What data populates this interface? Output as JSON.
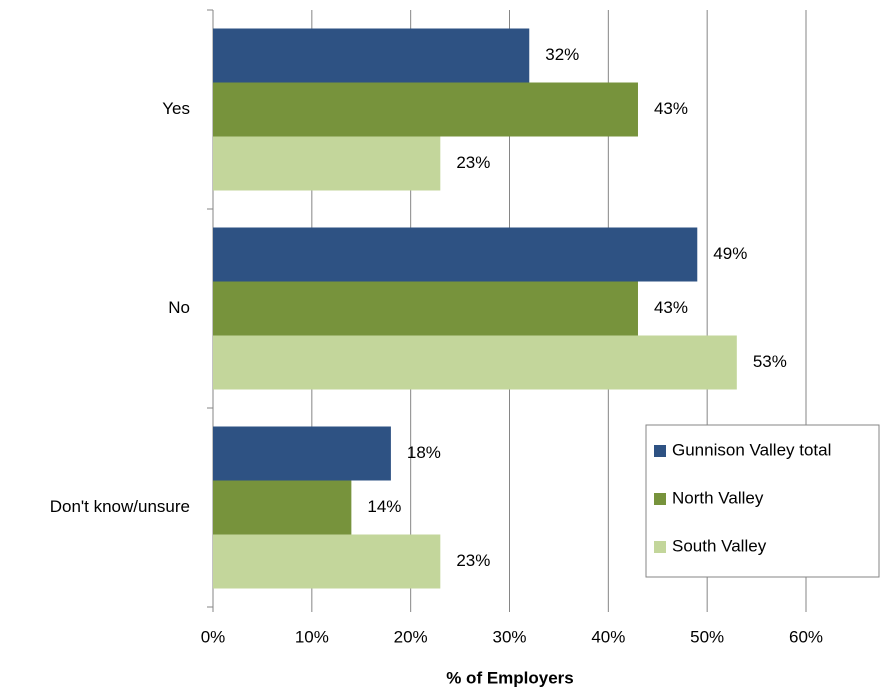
{
  "chart_data": {
    "type": "bar",
    "orientation": "horizontal",
    "categories": [
      "Yes",
      "No",
      "Don't know/unsure"
    ],
    "series": [
      {
        "name": "Gunnison Valley total",
        "color": "#2e5283",
        "values": [
          32,
          49,
          18
        ],
        "value_labels": [
          "32%",
          "49%",
          "18%"
        ]
      },
      {
        "name": "North Valley",
        "color": "#77933c",
        "values": [
          43,
          43,
          14
        ],
        "value_labels": [
          "43%",
          "43%",
          "14%"
        ]
      },
      {
        "name": "South Valley",
        "color": "#c3d69b",
        "values": [
          23,
          53,
          23
        ],
        "value_labels": [
          "23%",
          "53%",
          "23%"
        ]
      }
    ],
    "xlabel": "% of Employers",
    "xlim": [
      0,
      60
    ],
    "xticks": [
      {
        "value": 0,
        "label": "0%"
      },
      {
        "value": 10,
        "label": "10%"
      },
      {
        "value": 20,
        "label": "20%"
      },
      {
        "value": 30,
        "label": "30%"
      },
      {
        "value": 40,
        "label": "40%"
      },
      {
        "value": 50,
        "label": "50%"
      },
      {
        "value": 60,
        "label": "60%"
      }
    ],
    "grid": true,
    "legend": "lower right"
  }
}
